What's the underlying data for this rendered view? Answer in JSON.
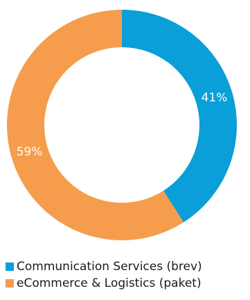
{
  "chart_data": {
    "type": "pie",
    "style": "donut",
    "title": "",
    "categories": [
      "Communication Services (brev)",
      "eCommerce & Logistics (paket)"
    ],
    "values": [
      41,
      59
    ],
    "labels": [
      "41%",
      "59%"
    ],
    "colors": [
      "#0a9fd8",
      "#f59d4d"
    ],
    "legend_position": "bottom-left"
  },
  "legend": [
    {
      "label": "Communication Services (brev)",
      "color": "#0a9fd8"
    },
    {
      "label": "eCommerce & Logistics (paket)",
      "color": "#f59d4d"
    }
  ]
}
